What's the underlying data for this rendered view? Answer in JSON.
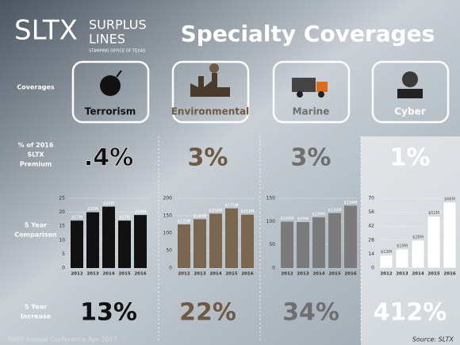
{
  "header": {
    "logo": "SLTX",
    "brand_line1": "SURPLUS",
    "brand_line2": "LINES",
    "tagline": "STAMPING OFFICE OF TEXAS",
    "title": "Specialty Coverages"
  },
  "row_labels": [
    [
      "Coverages"
    ],
    [
      "% of 2016",
      "SLTX",
      "Premium"
    ],
    [
      "5 Year",
      "Comparison"
    ],
    [
      "5 Year",
      "Increase"
    ]
  ],
  "footer": {
    "event": "RIMS Annual Conference Apr 2017",
    "source": "Source: SLTX"
  },
  "chart_data": [
    {
      "type": "bar",
      "title": "Terrorism",
      "premium_share": ".4%",
      "increase": "13%",
      "color": "#111111",
      "categories": [
        "2012",
        "2013",
        "2014",
        "2015",
        "2016"
      ],
      "values": [
        17,
        20,
        22,
        17,
        19
      ],
      "value_labels": [
        "$17M",
        "$20M",
        "$22M",
        "$17M",
        "$19M"
      ],
      "ylim": [
        0,
        25
      ],
      "yticks": [
        0,
        5,
        10,
        15,
        20,
        25
      ]
    },
    {
      "type": "bar",
      "title": "Environmental",
      "premium_share": "3%",
      "increase": "22%",
      "color": "#7a6650",
      "categories": [
        "2012",
        "2013",
        "2014",
        "2015",
        "2016"
      ],
      "values": [
        125,
        140,
        156,
        171,
        153
      ],
      "value_labels": [
        "$125M",
        "$140M",
        "$156M",
        "$171M",
        "$153M"
      ],
      "ylim": [
        0,
        200
      ],
      "yticks": [
        0,
        50,
        100,
        150,
        200
      ]
    },
    {
      "type": "bar",
      "title": "Marine",
      "premium_share": "3%",
      "increase": "34%",
      "color": "#7b7b7b",
      "categories": [
        "2012",
        "2013",
        "2014",
        "2015",
        "2016"
      ],
      "values": [
        100,
        99,
        109,
        118,
        134
      ],
      "value_labels": [
        "$100M",
        "$99M",
        "$109M",
        "$118M",
        "$134M"
      ],
      "ylim": [
        0,
        150
      ],
      "yticks": [
        0,
        50,
        100,
        150
      ]
    },
    {
      "type": "bar",
      "title": "Cyber",
      "premium_share": "1%",
      "increase": "412%",
      "color": "#ffffff",
      "categories": [
        "2012",
        "2013",
        "2014",
        "2015",
        "2016"
      ],
      "values": [
        13,
        19,
        28,
        52,
        66
      ],
      "value_labels": [
        "$13M",
        "$19M",
        "$28M",
        "$52M",
        "$66M"
      ],
      "ylim": [
        0,
        70
      ],
      "yticks": [
        0,
        14,
        28,
        42,
        56,
        70
      ]
    }
  ]
}
